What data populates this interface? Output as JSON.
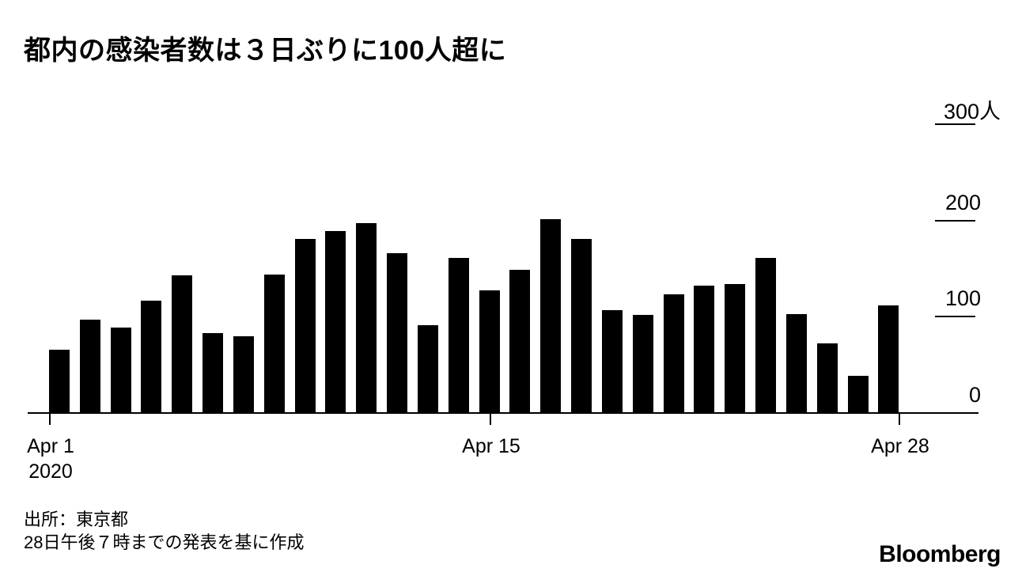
{
  "title": "都内の感染者数は３日ぶりに100人超に",
  "source": {
    "line1": "出所：東京都",
    "line2": "28日午後７時までの発表を基に作成"
  },
  "brand": "Bloomberg",
  "colors": {
    "bar": "#000000",
    "text": "#000000",
    "axis": "#000000"
  },
  "chart_data": {
    "type": "bar",
    "title": "都内の感染者数は３日ぶりに100人超に",
    "categories": [
      "Apr 1",
      "Apr 2",
      "Apr 3",
      "Apr 4",
      "Apr 5",
      "Apr 6",
      "Apr 7",
      "Apr 8",
      "Apr 9",
      "Apr 10",
      "Apr 11",
      "Apr 12",
      "Apr 13",
      "Apr 14",
      "Apr 15",
      "Apr 16",
      "Apr 17",
      "Apr 18",
      "Apr 19",
      "Apr 20",
      "Apr 21",
      "Apr 22",
      "Apr 23",
      "Apr 24",
      "Apr 25",
      "Apr 26",
      "Apr 27",
      "Apr 28"
    ],
    "values": [
      66,
      97,
      89,
      117,
      143,
      83,
      80,
      144,
      181,
      189,
      197,
      166,
      91,
      161,
      127,
      149,
      201,
      181,
      107,
      102,
      123,
      132,
      134,
      161,
      103,
      72,
      39,
      112
    ],
    "unit": "人",
    "xlabel": "",
    "ylabel": "",
    "ylim": [
      0,
      300
    ],
    "yticks": [
      {
        "value": 0,
        "label": "0"
      },
      {
        "value": 100,
        "label": "100"
      },
      {
        "value": 200,
        "label": "200"
      },
      {
        "value": 300,
        "label": "300人"
      }
    ],
    "xticks": [
      {
        "day": 1,
        "label": "Apr 1"
      },
      {
        "day": 15,
        "label": "Apr 15"
      },
      {
        "day": 28,
        "label": "Apr 28"
      }
    ],
    "x_sub_label": "2020",
    "axis_label_side": "right",
    "grid": false,
    "legend": false
  }
}
